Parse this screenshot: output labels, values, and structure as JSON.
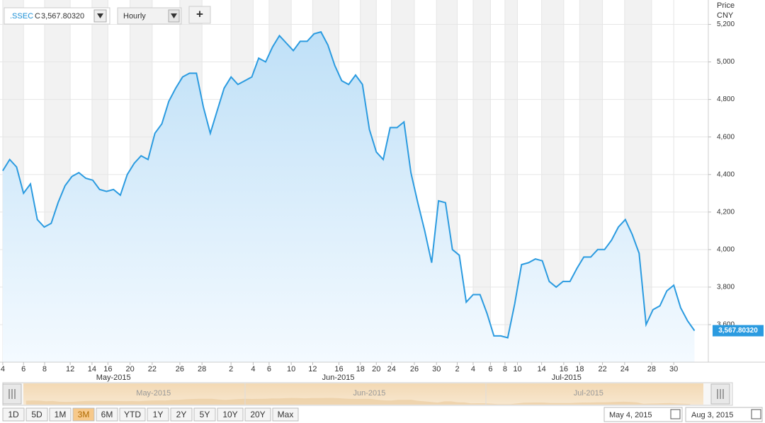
{
  "chart_data": {
    "type": "area",
    "symbol": ".SSEC",
    "quote_prefix": "C",
    "last_price_label": "3,567.80320",
    "interval": "Hourly",
    "add_button": "+",
    "y_axis_title": "Price",
    "y_axis_unit": "CNY",
    "color": "#2b9be0",
    "grid": true,
    "x": [
      0,
      1,
      2,
      3,
      4,
      5,
      6,
      7,
      8,
      9,
      10,
      11,
      12,
      13,
      14,
      15,
      16,
      17,
      18,
      19,
      20,
      21,
      22,
      23,
      24,
      25,
      26,
      27,
      28,
      29,
      30,
      31,
      32,
      33,
      34,
      35,
      36,
      37,
      38,
      39,
      40,
      41,
      42,
      43,
      44,
      45,
      46,
      47,
      48,
      49,
      50,
      51,
      52,
      53,
      54,
      55,
      56,
      57,
      58,
      59,
      60,
      61,
      62,
      63,
      64,
      65,
      66,
      67,
      68,
      69,
      70,
      71,
      72,
      73,
      74,
      75,
      76,
      77,
      78,
      79,
      80,
      81,
      82,
      83,
      84,
      85,
      86,
      87,
      88,
      89,
      90,
      91,
      92,
      93,
      94,
      95,
      96,
      97,
      98,
      99,
      100
    ],
    "values": [
      4420,
      4480,
      4440,
      4300,
      4350,
      4160,
      4120,
      4140,
      4250,
      4340,
      4390,
      4410,
      4380,
      4370,
      4320,
      4310,
      4320,
      4290,
      4400,
      4460,
      4500,
      4480,
      4620,
      4670,
      4790,
      4860,
      4920,
      4940,
      4940,
      4760,
      4620,
      4740,
      4860,
      4920,
      4880,
      4900,
      4920,
      5020,
      5000,
      5080,
      5140,
      5100,
      5060,
      5110,
      5110,
      5150,
      5160,
      5090,
      4980,
      4900,
      4880,
      4930,
      4880,
      4640,
      4520,
      4480,
      4650,
      4650,
      4680,
      4410,
      4250,
      4100,
      3930,
      4260,
      4250,
      4000,
      3970,
      3720,
      3760,
      3760,
      3660,
      3540,
      3540,
      3530,
      3710,
      3920,
      3930,
      3950,
      3940,
      3830,
      3800,
      3830,
      3830,
      3900,
      3960,
      3960,
      4000,
      4000,
      4050,
      4120,
      4160,
      4080,
      3980,
      3600,
      3680,
      3700,
      3780,
      3810,
      3690,
      3620,
      3567.8032
    ],
    "xlim": [
      -0.4,
      102
    ],
    "ylim": [
      3400,
      5330
    ],
    "yticks": [
      {
        "value": 3600,
        "label": "3,600"
      },
      {
        "value": 3800,
        "label": "3,800"
      },
      {
        "value": 4000,
        "label": "4,000"
      },
      {
        "value": 4200,
        "label": "4,200"
      },
      {
        "value": 4400,
        "label": "4,400"
      },
      {
        "value": 4600,
        "label": "4,600"
      },
      {
        "value": 4800,
        "label": "4,800"
      },
      {
        "value": 5000,
        "label": "5,000"
      },
      {
        "value": 5200,
        "label": "5,200"
      }
    ],
    "xticks": [
      {
        "value": 0,
        "label": "4"
      },
      {
        "value": 3,
        "label": "6"
      },
      {
        "value": 6.05,
        "label": "8"
      },
      {
        "value": 9.75,
        "label": "12"
      },
      {
        "value": 12.9,
        "label": "14"
      },
      {
        "value": 15.2,
        "label": "16"
      },
      {
        "value": 18.4,
        "label": "20"
      },
      {
        "value": 21.6,
        "label": "22"
      },
      {
        "value": 25.6,
        "label": "26"
      },
      {
        "value": 28.8,
        "label": "28"
      },
      {
        "value": 33,
        "label": "2"
      },
      {
        "value": 36.2,
        "label": "4"
      },
      {
        "value": 38.5,
        "label": "6"
      },
      {
        "value": 41.7,
        "label": "10"
      },
      {
        "value": 44.8,
        "label": "12"
      },
      {
        "value": 48.6,
        "label": "16"
      },
      {
        "value": 51.7,
        "label": "18"
      },
      {
        "value": 54,
        "label": "20"
      },
      {
        "value": 56.2,
        "label": "24"
      },
      {
        "value": 59.5,
        "label": "26"
      },
      {
        "value": 62.7,
        "label": "30"
      },
      {
        "value": 65.7,
        "label": "2"
      },
      {
        "value": 68,
        "label": "4"
      },
      {
        "value": 70.5,
        "label": "6"
      },
      {
        "value": 72.6,
        "label": "8"
      },
      {
        "value": 74.4,
        "label": "10"
      },
      {
        "value": 77.9,
        "label": "14"
      },
      {
        "value": 81.1,
        "label": "16"
      },
      {
        "value": 83.4,
        "label": "18"
      },
      {
        "value": 86.7,
        "label": "22"
      },
      {
        "value": 89.9,
        "label": "24"
      },
      {
        "value": 93.8,
        "label": "28"
      },
      {
        "value": 97,
        "label": "30"
      }
    ],
    "month_ticks": [
      {
        "value": 16,
        "label": "May-2015"
      },
      {
        "value": 48.5,
        "label": "Jun-2015"
      },
      {
        "value": 81.5,
        "label": "Jul-2015"
      }
    ],
    "range_buttons": [
      "1D",
      "5D",
      "1M",
      "3M",
      "6M",
      "YTD",
      "1Y",
      "2Y",
      "5Y",
      "10Y",
      "20Y",
      "Max"
    ],
    "active_range": "3M",
    "date_from": "May 4, 2015",
    "date_to": "Aug 3, 2015"
  }
}
